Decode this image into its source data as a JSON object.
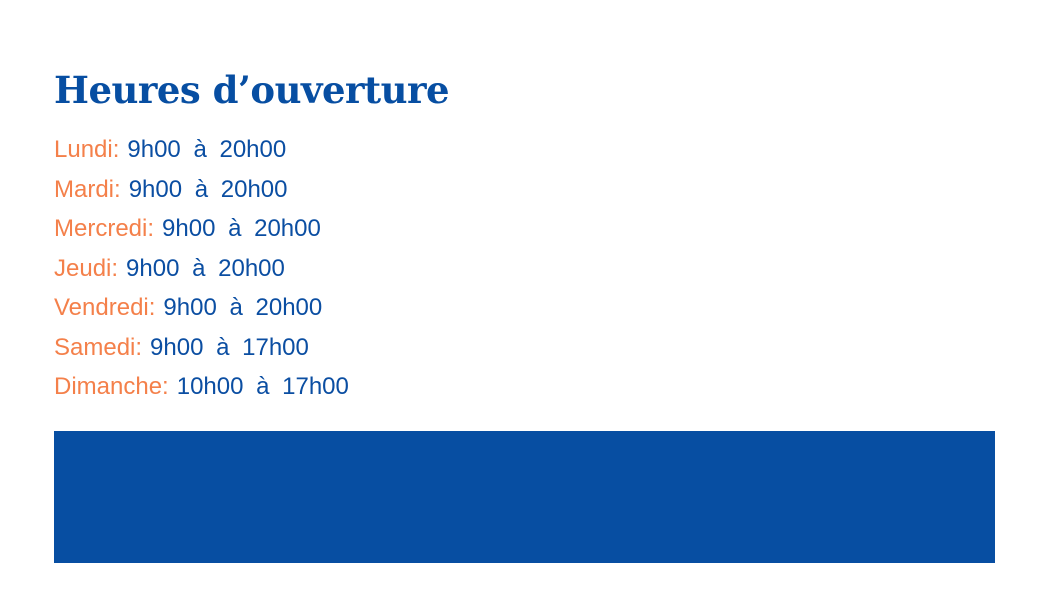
{
  "title": "Heures d’ouverture",
  "colors": {
    "primary": "#074ea2",
    "accent": "#f4804a"
  },
  "hours": [
    {
      "day": "Lundi:",
      "time": "9h00 à 20h00"
    },
    {
      "day": "Mardi:",
      "time": "9h00 à 20h00"
    },
    {
      "day": "Mercredi:",
      "time": "9h00 à 20h00"
    },
    {
      "day": "Jeudi:",
      "time": "9h00 à 20h00"
    },
    {
      "day": "Vendredi:",
      "time": "9h00 à 20h00"
    },
    {
      "day": "Samedi:",
      "time": "9h00 à 17h00"
    },
    {
      "day": "Dimanche:",
      "time": "10h00 à 17h00"
    }
  ]
}
